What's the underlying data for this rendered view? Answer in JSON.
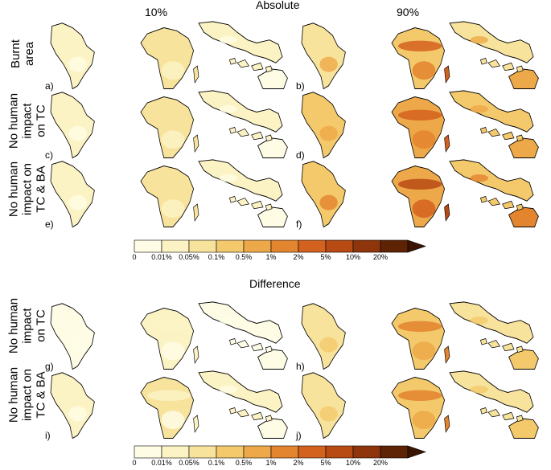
{
  "headers": {
    "absolute": "Absolute",
    "difference": "Difference",
    "col_left": "10%",
    "col_right": "90%"
  },
  "rows": [
    {
      "label_lines": [
        "Burnt",
        "area"
      ]
    },
    {
      "label_lines": [
        "No human",
        "impact",
        "on TC"
      ]
    },
    {
      "label_lines": [
        "No human",
        "impact on",
        "TC & BA"
      ]
    },
    {
      "label_lines": [
        "No human",
        "impact",
        "on TC"
      ]
    },
    {
      "label_lines": [
        "No human",
        "impact on",
        "TC & BA"
      ]
    }
  ],
  "panel_labels": {
    "a": "a)",
    "b": "b)",
    "c": "c)",
    "d": "d)",
    "e": "e)",
    "f": "f)",
    "g": "g)",
    "h": "h)",
    "i": "i)",
    "j": "j)"
  },
  "colorbar": {
    "ticks": [
      "0",
      "0.01%",
      "0.05%",
      "0.1%",
      "0.5%",
      "1%",
      "2%",
      "5%",
      "10%",
      "20%"
    ],
    "colors": [
      "#fefce5",
      "#fcf3c4",
      "#f8e39d",
      "#f3c96c",
      "#eda949",
      "#e3842e",
      "#d3621f",
      "#b84a14",
      "#8f350c",
      "#5e2205"
    ]
  },
  "panel_intensity": {
    "a": 0.18,
    "b": 0.62,
    "c": 0.2,
    "d": 0.7,
    "e": 0.22,
    "f": 0.82,
    "g": 0.12,
    "h": 0.5,
    "i": 0.14,
    "j": 0.55
  }
}
